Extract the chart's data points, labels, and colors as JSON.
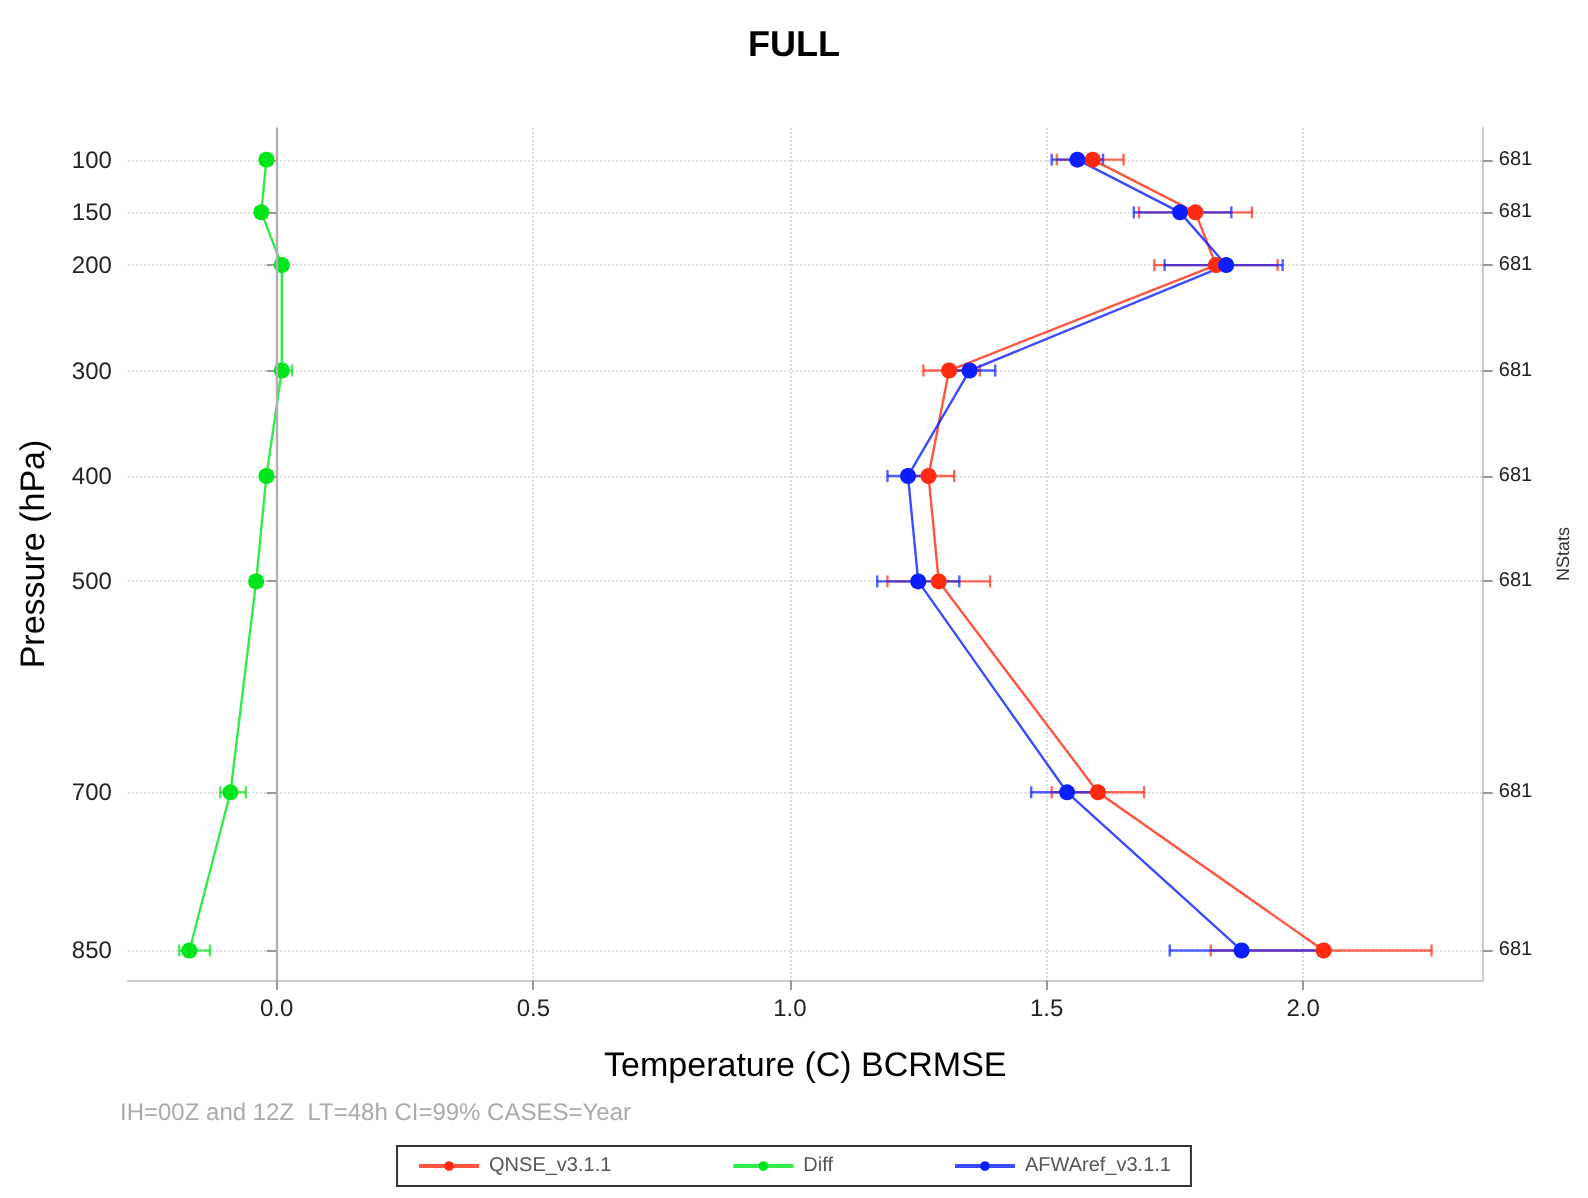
{
  "chart_data": {
    "type": "line",
    "title": "FULL",
    "xlabel": "Temperature (C) BCRMSE",
    "ylabel": "Pressure (hPa)",
    "y2label": "NStats",
    "annotations": [
      "IH=00Z and 12Z  LT=48h CI=99% CASES=Year",
      "681",
      "681",
      "681",
      "681",
      "681",
      "681",
      "681",
      "681"
    ],
    "xlim": [
      -0.29,
      2.35
    ],
    "xticks": [
      {
        "value": 0,
        "label": "0.0"
      },
      {
        "value": 0.5,
        "label": "0.5"
      },
      {
        "value": 1,
        "label": "1.0"
      },
      {
        "value": 1.5,
        "label": "1.5"
      },
      {
        "value": 2,
        "label": "2.0"
      }
    ],
    "ylim": [
      878,
      70
    ],
    "yticks": [
      100,
      150,
      200,
      300,
      400,
      500,
      700,
      850
    ],
    "grid": true,
    "legend": "bottom",
    "marker": "circle",
    "line_style": "solid",
    "ref_lines": [
      {
        "axis": "x",
        "value": 0,
        "color": "#b0b0b0"
      }
    ],
    "series": [
      {
        "name": "QNSE_v3.1.1",
        "color": "#ff2a10",
        "x": [
          1.59,
          1.79,
          1.83,
          1.31,
          1.27,
          1.29,
          1.6,
          2.04
        ],
        "values": [
          100,
          150,
          200,
          300,
          400,
          500,
          700,
          850
        ],
        "xerrors": [
          [
            1.52,
            1.65
          ],
          [
            1.68,
            1.9
          ],
          [
            1.71,
            1.95
          ],
          [
            1.26,
            1.37
          ],
          [
            1.23,
            1.32
          ],
          [
            1.19,
            1.39
          ],
          [
            1.51,
            1.69
          ],
          [
            1.82,
            2.25
          ]
        ]
      },
      {
        "name": "Diff",
        "color": "#00e61a",
        "x": [
          -0.02,
          -0.03,
          0.01,
          0.01,
          -0.02,
          -0.04,
          -0.09,
          -0.17
        ],
        "values": [
          100,
          150,
          200,
          300,
          400,
          500,
          700,
          850
        ],
        "xerrors": [
          [
            -0.03,
            -0.01
          ],
          [
            -0.04,
            -0.02
          ],
          [
            0,
            0.02
          ],
          [
            0,
            0.03
          ],
          [
            -0.03,
            -0.01
          ],
          [
            -0.05,
            -0.03
          ],
          [
            -0.11,
            -0.06
          ],
          [
            -0.19,
            -0.13
          ]
        ]
      },
      {
        "name": "AFWAref_v3.1.1",
        "color": "#0a1eff",
        "x": [
          1.56,
          1.76,
          1.85,
          1.35,
          1.23,
          1.25,
          1.54,
          1.88
        ],
        "values": [
          100,
          150,
          200,
          300,
          400,
          500,
          700,
          850
        ],
        "xerrors": [
          [
            1.51,
            1.61
          ],
          [
            1.67,
            1.86
          ],
          [
            1.73,
            1.96
          ],
          [
            1.31,
            1.4
          ],
          [
            1.19,
            1.27
          ],
          [
            1.17,
            1.33
          ],
          [
            1.47,
            1.61
          ],
          [
            1.74,
            2.03
          ]
        ]
      }
    ]
  }
}
